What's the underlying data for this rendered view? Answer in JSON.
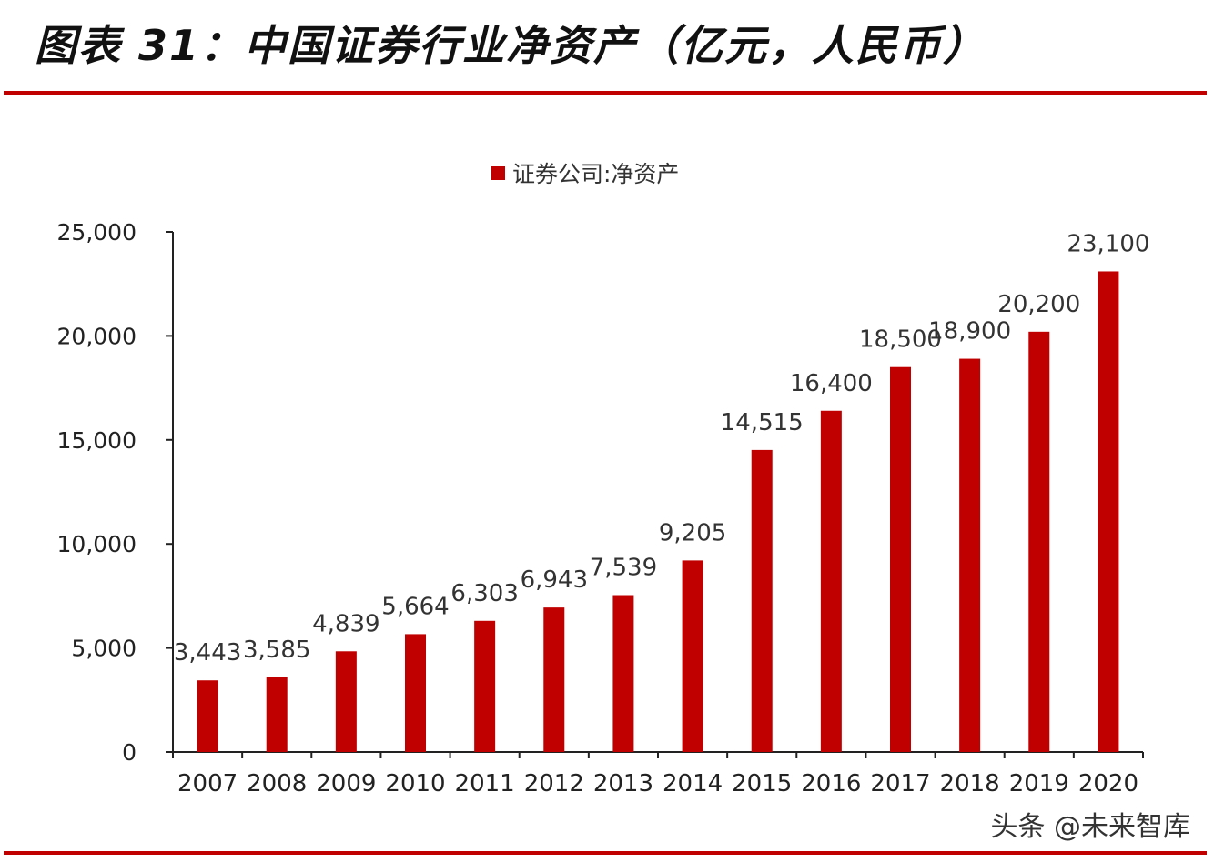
{
  "header": {
    "title": "图表 31：中国证券行业净资产（亿元，人民币）"
  },
  "watermark": "头条 @未来智库",
  "colors": {
    "bar": "#c00000",
    "rule": "#c00000",
    "axis": "#222222"
  },
  "chart_data": {
    "type": "bar",
    "title": "",
    "xlabel": "",
    "ylabel": "",
    "categories": [
      "2007",
      "2008",
      "2009",
      "2010",
      "2011",
      "2012",
      "2013",
      "2014",
      "2015",
      "2016",
      "2017",
      "2018",
      "2019",
      "2020"
    ],
    "series": [
      {
        "name": "证券公司:净资产",
        "values": [
          3443,
          3585,
          4839,
          5664,
          6303,
          6943,
          7539,
          9205,
          14515,
          16400,
          18500,
          18900,
          20200,
          23100
        ]
      }
    ],
    "data_labels": [
      "3,443",
      "3,585",
      "4,839",
      "5,664",
      "6,303",
      "6,943",
      "7,539",
      "9,205",
      "14,515",
      "16,400",
      "18,500",
      "18,900",
      "20,200",
      "23,100"
    ],
    "ylim": [
      0,
      25000
    ],
    "yticks": [
      0,
      5000,
      10000,
      15000,
      20000,
      25000
    ],
    "ytick_labels": [
      "0",
      "5,000",
      "10,000",
      "15,000",
      "20,000",
      "25,000"
    ],
    "grid": false,
    "legend": "top-center"
  }
}
